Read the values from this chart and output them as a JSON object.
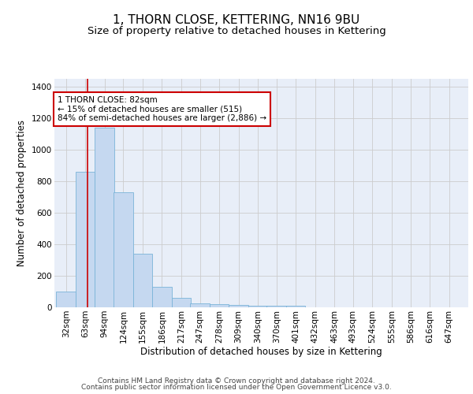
{
  "title": "1, THORN CLOSE, KETTERING, NN16 9BU",
  "subtitle": "Size of property relative to detached houses in Kettering",
  "xlabel": "Distribution of detached houses by size in Kettering",
  "ylabel": "Number of detached properties",
  "bin_labels": [
    "32sqm",
    "63sqm",
    "94sqm",
    "124sqm",
    "155sqm",
    "186sqm",
    "217sqm",
    "247sqm",
    "278sqm",
    "309sqm",
    "340sqm",
    "370sqm",
    "401sqm",
    "432sqm",
    "463sqm",
    "493sqm",
    "524sqm",
    "555sqm",
    "586sqm",
    "616sqm",
    "647sqm"
  ],
  "bar_values": [
    100,
    860,
    1140,
    730,
    340,
    130,
    60,
    27,
    20,
    15,
    10,
    8,
    8,
    0,
    0,
    0,
    0,
    0,
    0,
    0,
    0
  ],
  "bar_color": "#c5d8f0",
  "bar_edge_color": "#7ab4d8",
  "grid_color": "#cccccc",
  "background_color": "#e8eef8",
  "red_line_x": 82,
  "bin_starts": [
    32,
    63,
    94,
    124,
    155,
    186,
    217,
    247,
    278,
    309,
    340,
    370,
    401,
    432,
    463,
    493,
    524,
    555,
    586,
    616,
    647
  ],
  "bin_width": 31,
  "annotation_text": "1 THORN CLOSE: 82sqm\n← 15% of detached houses are smaller (515)\n84% of semi-detached houses are larger (2,886) →",
  "annotation_box_color": "#ffffff",
  "annotation_box_edge": "#cc0000",
  "ylim": [
    0,
    1450
  ],
  "yticks": [
    0,
    200,
    400,
    600,
    800,
    1000,
    1200,
    1400
  ],
  "footer_line1": "Contains HM Land Registry data © Crown copyright and database right 2024.",
  "footer_line2": "Contains public sector information licensed under the Open Government Licence v3.0.",
  "title_fontsize": 11,
  "subtitle_fontsize": 9.5,
  "axis_label_fontsize": 8.5,
  "tick_fontsize": 7.5,
  "footer_fontsize": 6.5,
  "annot_fontsize": 7.5
}
